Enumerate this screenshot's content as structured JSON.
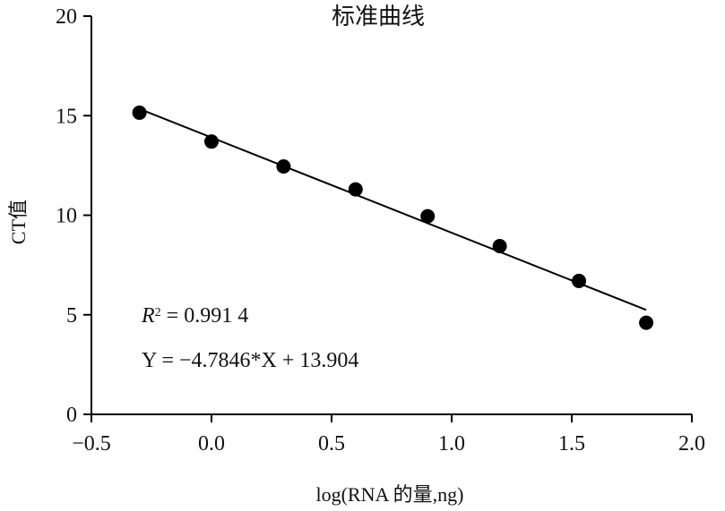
{
  "chart_data": {
    "type": "scatter",
    "title": "标准曲线",
    "xlabel": "log(RNA 的量,ng)",
    "ylabel": "CT值",
    "xlim": [
      -0.5,
      2.0
    ],
    "ylim": [
      0,
      20
    ],
    "xticks": [
      -0.5,
      0.0,
      0.5,
      1.0,
      1.5,
      2.0
    ],
    "xtick_labels": [
      "−0.5",
      "0.0",
      "0.5",
      "1.0",
      "1.5",
      "2.0"
    ],
    "yticks": [
      0,
      5,
      10,
      15,
      20
    ],
    "ytick_labels": [
      "0",
      "5",
      "10",
      "15",
      "20"
    ],
    "grid": false,
    "series": [
      {
        "x": [
          -0.3,
          0.0,
          0.3,
          0.6,
          0.9,
          1.2,
          1.53,
          1.81
        ],
        "y": [
          15.15,
          13.7,
          12.45,
          11.3,
          9.95,
          8.45,
          6.7,
          4.6
        ]
      }
    ],
    "fit_line": {
      "slope": -4.7846,
      "intercept": 13.904,
      "x_range": [
        -0.3,
        1.81
      ]
    },
    "annotations": {
      "r2_label": "R",
      "r2_sup": "2",
      "r2_value": " = 0.991 4",
      "equation": "Y = −4.7846*X + 13.904"
    },
    "colors": {
      "marker": "#000000",
      "line": "#000000",
      "axis": "#000000"
    }
  }
}
